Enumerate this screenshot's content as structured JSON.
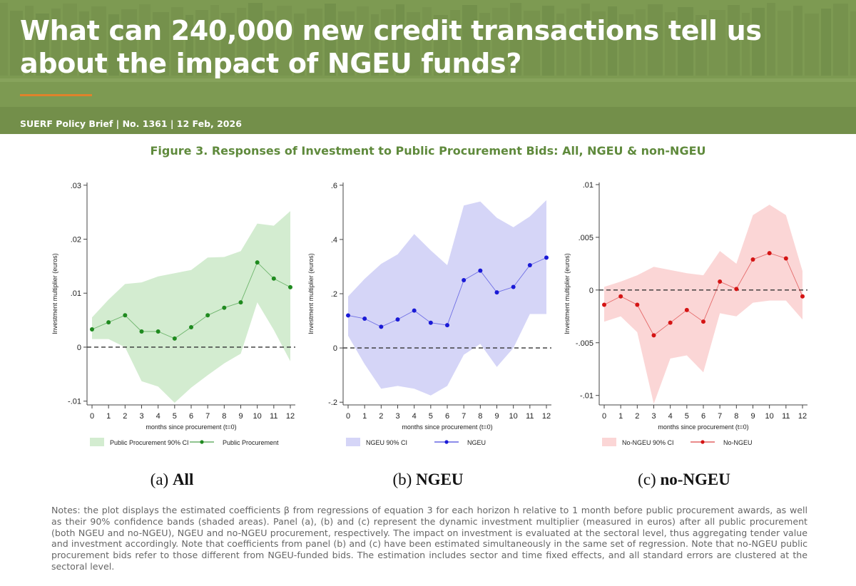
{
  "header": {
    "title": "What can 240,000 new credit transactions tell us about the impact of NGEU funds?",
    "meta": "SUERF Policy Brief | No. 1361 | 12 Feb, 2026"
  },
  "figure": {
    "title": "Figure 3. Responses of Investment to Public Procurement Bids: All, NGEU & non-NGEU",
    "notes": "Notes: the plot displays the estimated coefficients β from regressions of equation 3 for each horizon h relative to 1 month before public procurement awards, as well as their 90% confidence bands (shaded areas). Panel (a), (b) and (c) represent the dynamic investment multiplier (measured in euros) after all public procurement (both NGEU and no-NGEU), NGEU and no-NGEU procurement, respectively. The impact on investment is evaluated at the sectoral level, thus aggregating tender value and investment accordingly. Note that coefficients from panel (b) and (c) have been estimated simultaneously in the same set of regression. Note that no-NGEU public procurement bids refer to those different from NGEU-funded bids. The estimation includes sector and time fixed effects, and all standard errors are clustered at the sectoral level."
  },
  "chart_data": [
    {
      "type": "line",
      "caption_prefix": "(a) ",
      "caption_bold": "All",
      "xlabel": "months since procurement (t=0)",
      "ylabel": "Investment multiplier (euros)",
      "x": [
        0,
        1,
        2,
        3,
        4,
        5,
        6,
        7,
        8,
        9,
        10,
        11,
        12
      ],
      "xlim": [
        0,
        12
      ],
      "ylim": [
        -0.0107,
        0.0305
      ],
      "yticks": [
        -0.01,
        0,
        0.01,
        0.02,
        0.03
      ],
      "ytick_labels": [
        "-.01",
        "0",
        ".01",
        ".02",
        ".03"
      ],
      "reference_line": 0,
      "series": [
        {
          "name": "Public Procurement",
          "values": [
            0.0033,
            0.0046,
            0.0059,
            0.0029,
            0.0029,
            0.0016,
            0.0037,
            0.0059,
            0.0073,
            0.0083,
            0.0157,
            0.0127,
            0.0111
          ],
          "color": "#1f8a1f"
        }
      ],
      "band": {
        "name": "Public Procurement 90% CI",
        "lower": [
          0.0015,
          0.0015,
          0.0,
          -0.0063,
          -0.0073,
          -0.0103,
          -0.0075,
          -0.0052,
          -0.003,
          -0.0012,
          0.0083,
          0.0032,
          -0.0026
        ],
        "upper": [
          0.0055,
          0.0088,
          0.0117,
          0.012,
          0.0131,
          0.0137,
          0.0143,
          0.0166,
          0.0167,
          0.0178,
          0.0229,
          0.0225,
          0.0252
        ],
        "color": "#d3ecd0"
      },
      "legend_position": "bottom"
    },
    {
      "type": "line",
      "caption_prefix": "(b) ",
      "caption_bold": "NGEU",
      "xlabel": "months since procurement (t=0)",
      "ylabel": "Investment multiplier (euros)",
      "x": [
        0,
        1,
        2,
        3,
        4,
        5,
        6,
        7,
        8,
        9,
        10,
        11,
        12
      ],
      "xlim": [
        0,
        12
      ],
      "ylim": [
        -0.21,
        0.61
      ],
      "yticks": [
        -0.2,
        0,
        0.2,
        0.4,
        0.6
      ],
      "ytick_labels": [
        "-.2",
        "0",
        ".2",
        ".4",
        ".6"
      ],
      "reference_line": 0,
      "series": [
        {
          "name": "NGEU",
          "values": [
            0.12,
            0.108,
            0.078,
            0.105,
            0.138,
            0.093,
            0.084,
            0.25,
            0.285,
            0.205,
            0.225,
            0.305,
            0.333
          ],
          "color": "#1a1ad6"
        }
      ],
      "band": {
        "name": "NGEU 90% CI",
        "lower": [
          0.045,
          -0.06,
          -0.15,
          -0.14,
          -0.15,
          -0.175,
          -0.14,
          -0.025,
          0.015,
          -0.07,
          0.0,
          0.125,
          0.125
        ],
        "upper": [
          0.19,
          0.255,
          0.31,
          0.345,
          0.42,
          0.36,
          0.305,
          0.525,
          0.54,
          0.48,
          0.445,
          0.485,
          0.545
        ],
        "color": "#d5d5f7"
      },
      "legend_position": "bottom"
    },
    {
      "type": "line",
      "caption_prefix": "(c) ",
      "caption_bold": "no-NGEU",
      "xlabel": "months since procurement (t=0)",
      "ylabel": "Investment multiplier (euros)",
      "x": [
        0,
        1,
        2,
        3,
        4,
        5,
        6,
        7,
        8,
        9,
        10,
        11,
        12
      ],
      "xlim": [
        0,
        12
      ],
      "ylim": [
        -0.0109,
        0.0102
      ],
      "yticks": [
        -0.01,
        -0.005,
        0,
        0.005,
        0.01
      ],
      "ytick_labels": [
        "-.01",
        "-.005",
        "0",
        ".005",
        ".01"
      ],
      "reference_line": 0,
      "series": [
        {
          "name": "No-NGEU",
          "values": [
            -0.0014,
            -0.0006,
            -0.0014,
            -0.0043,
            -0.0031,
            -0.0019,
            -0.003,
            0.0008,
            0.0001,
            0.0029,
            0.0035,
            0.003,
            -0.0006
          ],
          "color": "#d41414"
        }
      ],
      "band": {
        "name": "No-NGEU 90% CI",
        "lower": [
          -0.003,
          -0.0025,
          -0.004,
          -0.0108,
          -0.0065,
          -0.0062,
          -0.0078,
          -0.0022,
          -0.0025,
          -0.0012,
          -0.001,
          -0.001,
          -0.0028
        ],
        "upper": [
          0.0003,
          0.0008,
          0.0014,
          0.0022,
          0.0019,
          0.0016,
          0.0014,
          0.0037,
          0.0025,
          0.0071,
          0.0081,
          0.0071,
          0.0018
        ],
        "color": "#fbd6d6"
      },
      "legend_position": "bottom"
    }
  ]
}
